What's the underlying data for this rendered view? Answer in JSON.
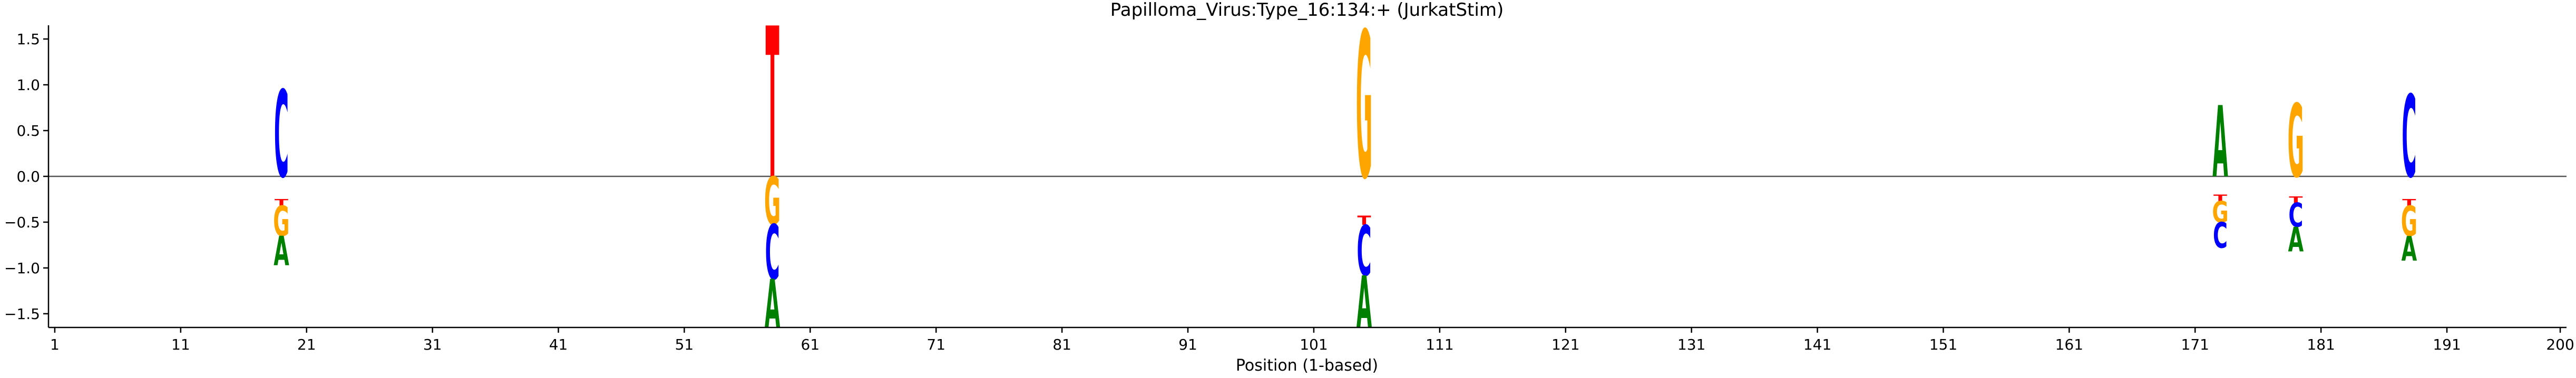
{
  "chart_data": {
    "type": "sequence-logo",
    "title": "Papilloma_Virus:Type_16:134:+  (JurkatStim)",
    "xlabel": "Position (1-based)",
    "ylabel": "",
    "xlim": [
      0.5,
      200.5
    ],
    "ylim": [
      -1.65,
      1.65
    ],
    "xticks": [
      1,
      11,
      21,
      31,
      41,
      51,
      61,
      71,
      81,
      91,
      101,
      111,
      121,
      131,
      141,
      151,
      161,
      171,
      181,
      191,
      200
    ],
    "yticks": [
      -1.5,
      -1.0,
      -0.5,
      0.0,
      0.5,
      1.0,
      1.5
    ],
    "ytick_labels": [
      "−1.5",
      "−1.0",
      "−0.5",
      "0.0",
      "0.5",
      "1.0",
      "1.5"
    ],
    "colors": {
      "A": "#008000",
      "C": "#0000ff",
      "G": "#ffa500",
      "T": "#ff0000"
    },
    "positions": [
      {
        "pos": 19,
        "stack": [
          {
            "base": "C",
            "from": 0.0,
            "to": 0.95
          },
          {
            "base": "T",
            "from": -0.25,
            "to": -0.32
          },
          {
            "base": "G",
            "from": -0.32,
            "to": -0.65
          },
          {
            "base": "A",
            "from": -0.65,
            "to": -0.97
          }
        ]
      },
      {
        "pos": 58,
        "stack": [
          {
            "base": "T",
            "from": 0.0,
            "to": 1.65
          },
          {
            "base": "G",
            "from": 0.0,
            "to": -0.52
          },
          {
            "base": "C",
            "from": -0.52,
            "to": -1.12
          },
          {
            "base": "A",
            "from": -1.12,
            "to": -1.65
          }
        ]
      },
      {
        "pos": 105,
        "stack": [
          {
            "base": "G",
            "from": 0.0,
            "to": 1.6
          },
          {
            "base": "T",
            "from": -0.43,
            "to": -0.53
          },
          {
            "base": "C",
            "from": -0.53,
            "to": -1.08
          },
          {
            "base": "A",
            "from": -1.08,
            "to": -1.65
          }
        ]
      },
      {
        "pos": 173,
        "stack": [
          {
            "base": "A",
            "from": 0.0,
            "to": 0.78
          },
          {
            "base": "T",
            "from": -0.2,
            "to": -0.27
          },
          {
            "base": "G",
            "from": -0.27,
            "to": -0.5
          },
          {
            "base": "C",
            "from": -0.5,
            "to": -0.78
          }
        ]
      },
      {
        "pos": 179,
        "stack": [
          {
            "base": "G",
            "from": 0.0,
            "to": 0.8
          },
          {
            "base": "T",
            "from": -0.22,
            "to": -0.29
          },
          {
            "base": "C",
            "from": -0.29,
            "to": -0.55
          },
          {
            "base": "A",
            "from": -0.55,
            "to": -0.82
          }
        ]
      },
      {
        "pos": 188,
        "stack": [
          {
            "base": "C",
            "from": 0.0,
            "to": 0.9
          },
          {
            "base": "T",
            "from": -0.25,
            "to": -0.32
          },
          {
            "base": "G",
            "from": -0.32,
            "to": -0.65
          },
          {
            "base": "A",
            "from": -0.65,
            "to": -0.92
          }
        ]
      }
    ]
  }
}
